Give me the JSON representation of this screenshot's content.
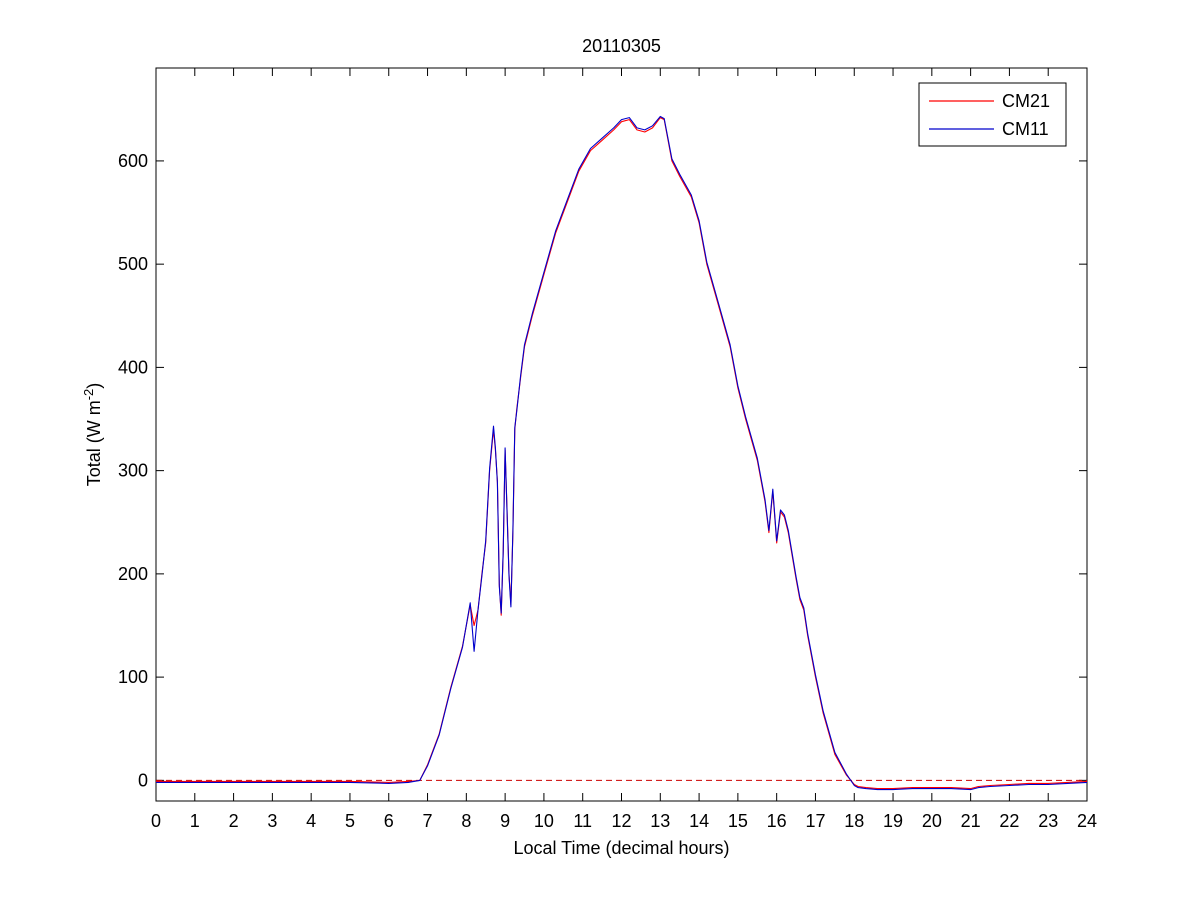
{
  "chart_data": {
    "type": "line",
    "title": "20110305",
    "xlabel": "Local Time (decimal hours)",
    "ylabel_main": "Total (W m",
    "ylabel_sup": "-2",
    "ylabel_close": ")",
    "xlim": [
      0,
      24
    ],
    "ylim": [
      -20,
      690
    ],
    "xticks": [
      0,
      1,
      2,
      3,
      4,
      5,
      6,
      7,
      8,
      9,
      10,
      11,
      12,
      13,
      14,
      15,
      16,
      17,
      18,
      19,
      20,
      21,
      22,
      23,
      24
    ],
    "yticks": [
      0,
      100,
      200,
      300,
      400,
      500,
      600
    ],
    "grid": false,
    "legend_position": "top-right",
    "reference_line": {
      "y": 0,
      "style": "dashed",
      "color": "#cc0000"
    },
    "series": [
      {
        "name": "CM21",
        "color": "#ff0000",
        "x": [
          0,
          1,
          2,
          3,
          4,
          5,
          6,
          6.5,
          6.8,
          7,
          7.3,
          7.6,
          7.9,
          8.1,
          8.2,
          8.3,
          8.4,
          8.5,
          8.6,
          8.7,
          8.75,
          8.8,
          8.85,
          8.9,
          8.95,
          9,
          9.05,
          9.1,
          9.15,
          9.2,
          9.25,
          9.3,
          9.4,
          9.5,
          9.7,
          10,
          10.3,
          10.6,
          10.9,
          11.2,
          11.5,
          11.8,
          12,
          12.2,
          12.4,
          12.6,
          12.8,
          13,
          13.1,
          13.3,
          13.5,
          13.8,
          14,
          14.2,
          14.5,
          14.8,
          15,
          15.2,
          15.5,
          15.7,
          15.8,
          15.9,
          16,
          16.1,
          16.2,
          16.3,
          16.5,
          16.6,
          16.7,
          16.8,
          17,
          17.2,
          17.5,
          17.8,
          18,
          18.1,
          18.3,
          18.6,
          19,
          19.5,
          20,
          20.5,
          21,
          21.2,
          21.5,
          22,
          22.5,
          23,
          23.5,
          24
        ],
        "y": [
          -1,
          -1,
          -1,
          -1,
          -1,
          -1,
          -2,
          -1,
          0,
          15,
          45,
          90,
          130,
          170,
          150,
          165,
          200,
          230,
          300,
          340,
          320,
          290,
          190,
          160,
          220,
          320,
          260,
          200,
          170,
          240,
          340,
          360,
          390,
          420,
          450,
          490,
          530,
          560,
          590,
          610,
          620,
          630,
          638,
          640,
          630,
          628,
          632,
          642,
          640,
          600,
          585,
          565,
          540,
          500,
          460,
          420,
          380,
          350,
          310,
          270,
          240,
          280,
          230,
          260,
          255,
          240,
          195,
          175,
          165,
          140,
          100,
          65,
          25,
          5,
          -4,
          -6,
          -7,
          -8,
          -8,
          -7,
          -7,
          -7,
          -8,
          -6,
          -5,
          -4,
          -3,
          -3,
          -2,
          -1
        ]
      },
      {
        "name": "CM11",
        "color": "#0000cc",
        "x": [
          0,
          1,
          2,
          3,
          4,
          5,
          6,
          6.5,
          6.8,
          7,
          7.3,
          7.6,
          7.9,
          8.1,
          8.2,
          8.3,
          8.4,
          8.5,
          8.6,
          8.7,
          8.75,
          8.8,
          8.85,
          8.9,
          8.95,
          9,
          9.05,
          9.1,
          9.15,
          9.2,
          9.25,
          9.3,
          9.4,
          9.5,
          9.7,
          10,
          10.3,
          10.6,
          10.9,
          11.2,
          11.5,
          11.8,
          12,
          12.2,
          12.4,
          12.6,
          12.8,
          13,
          13.1,
          13.3,
          13.5,
          13.8,
          14,
          14.2,
          14.5,
          14.8,
          15,
          15.2,
          15.5,
          15.7,
          15.8,
          15.9,
          16,
          16.1,
          16.2,
          16.3,
          16.5,
          16.6,
          16.7,
          16.8,
          17,
          17.2,
          17.5,
          17.8,
          18,
          18.1,
          18.3,
          18.6,
          19,
          19.5,
          20,
          20.5,
          21,
          21.2,
          21.5,
          22,
          22.5,
          23,
          23.5,
          24
        ],
        "y": [
          -2,
          -2,
          -2,
          -2,
          -2,
          -2,
          -3,
          -2,
          0,
          14,
          44,
          89,
          129,
          172,
          125,
          165,
          198,
          232,
          302,
          343,
          322,
          288,
          188,
          162,
          222,
          322,
          258,
          198,
          168,
          242,
          342,
          358,
          392,
          422,
          452,
          492,
          532,
          562,
          592,
          612,
          622,
          632,
          640,
          642,
          632,
          630,
          634,
          643,
          641,
          602,
          587,
          567,
          542,
          502,
          462,
          422,
          382,
          352,
          312,
          272,
          242,
          282,
          232,
          262,
          257,
          242,
          197,
          177,
          167,
          142,
          102,
          67,
          27,
          6,
          -5,
          -7,
          -8,
          -9,
          -9,
          -8,
          -8,
          -8,
          -9,
          -7,
          -6,
          -5,
          -4,
          -4,
          -3,
          -2
        ]
      }
    ]
  }
}
